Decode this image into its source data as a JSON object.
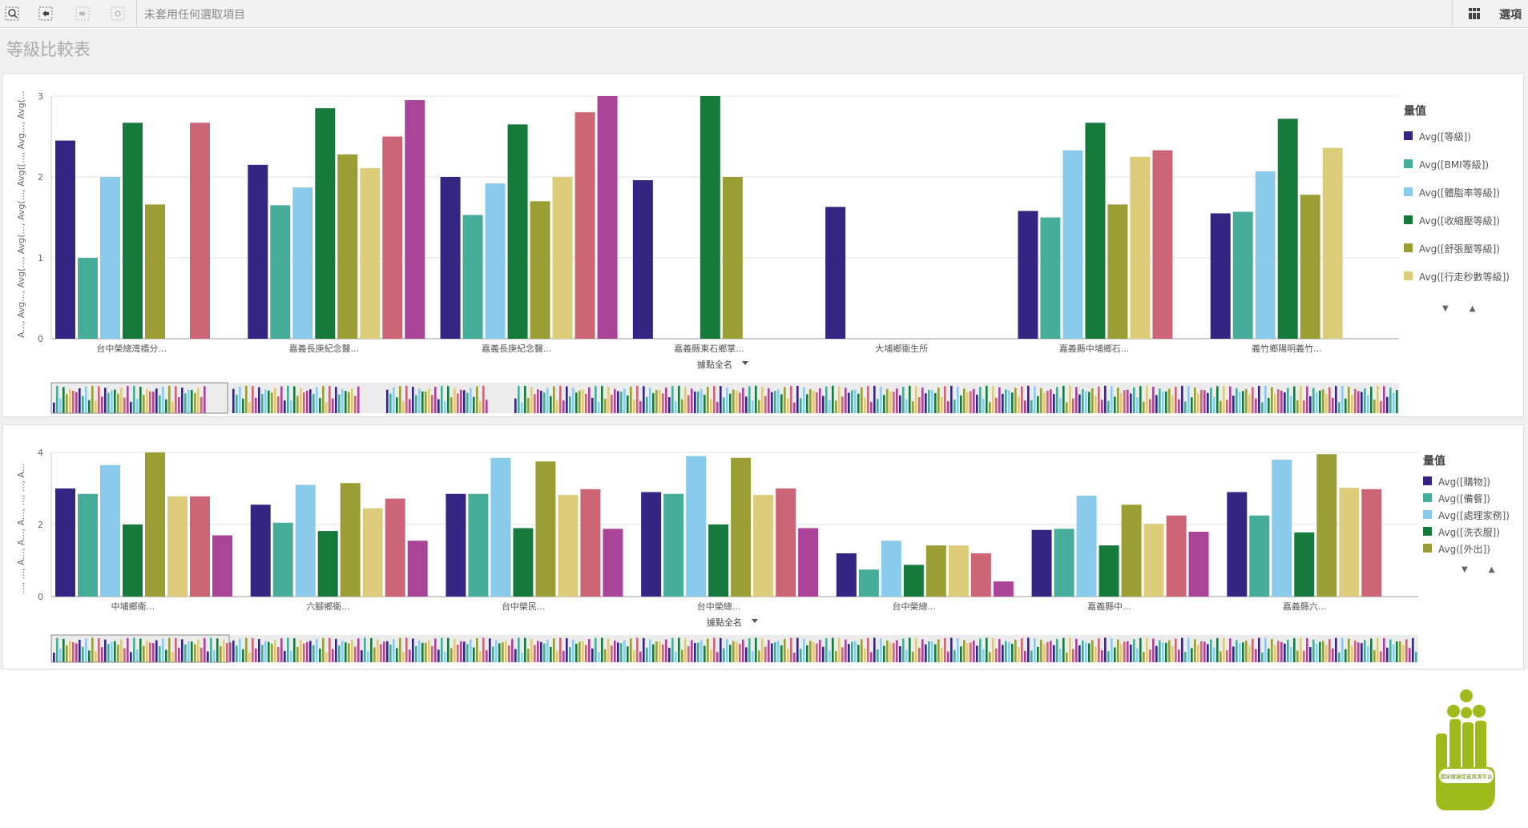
{
  "toolbar": {
    "selection_text": "未套用任何選取項目",
    "options_label": "選項",
    "icons": [
      "smart-search-icon",
      "selections-back-icon",
      "selections-forward-icon",
      "clear-selections-icon",
      "grid-icon"
    ]
  },
  "sheet": {
    "title": "等級比較表"
  },
  "chart1": {
    "y_axis_label": "A..., Avg..., Avg(..., Avg(..., Avg(..., Avg([..., Avg..., Avg(...",
    "x_axis_label": "據點全名",
    "legend_title": "量值",
    "chart_data": {
      "type": "bar",
      "categories": [
        "台中榮總灣橋分...",
        "嘉義長庚紀念醫...",
        "嘉義長庚紀念醫...",
        "嘉義縣東石鄉掌...",
        "大埔鄉衛生所",
        "嘉義縣中埔鄉石...",
        "義竹鄉陽明義竹..."
      ],
      "ylim": [
        0,
        3
      ],
      "yticks": [
        0,
        1,
        2,
        3
      ],
      "series": [
        {
          "name": "Avg([等級])",
          "color": "#352583",
          "values": [
            2.45,
            2.15,
            2.0,
            1.96,
            1.63,
            1.58,
            1.55
          ]
        },
        {
          "name": "Avg([BMI等級])",
          "color": "#46ad9b",
          "values": [
            1.0,
            1.65,
            1.53,
            null,
            null,
            1.5,
            1.57
          ]
        },
        {
          "name": "Avg([體脂率等級])",
          "color": "#8acbec",
          "values": [
            2.0,
            1.87,
            1.92,
            null,
            null,
            2.33,
            2.07
          ]
        },
        {
          "name": "Avg([收縮壓等級])",
          "color": "#167a3c",
          "values": [
            2.67,
            2.85,
            2.65,
            3.0,
            null,
            2.67,
            2.72
          ]
        },
        {
          "name": "Avg([舒張壓等級])",
          "color": "#9a9e35",
          "values": [
            1.66,
            2.28,
            1.7,
            2.0,
            null,
            1.66,
            1.78
          ]
        },
        {
          "name": "Avg([行走秒數等級])",
          "color": "#ddcc79",
          "values": [
            null,
            2.11,
            2.0,
            null,
            null,
            2.25,
            2.36
          ]
        },
        {
          "name": "",
          "color": "#cc6677",
          "values": [
            2.67,
            2.5,
            2.8,
            null,
            null,
            2.33,
            null
          ]
        },
        {
          "name": "",
          "color": "#aa4499",
          "values": [
            null,
            2.95,
            3.0,
            null,
            null,
            null,
            null
          ]
        }
      ],
      "legend_position": "right",
      "grid": true
    }
  },
  "chart2": {
    "y_axis_label": "..., ..., A..., A..., A..., ..., ..., A...",
    "x_axis_label": "據點全名",
    "legend_title": "量值",
    "chart_data": {
      "type": "bar",
      "categories": [
        "中埔鄉衛...",
        "六腳鄉衛...",
        "台中榮民...",
        "台中榮總...",
        "台中榮總...",
        "嘉義縣中...",
        "嘉義縣六..."
      ],
      "ylim": [
        0,
        4
      ],
      "yticks": [
        0,
        2,
        4
      ],
      "series": [
        {
          "name": "Avg([購物])",
          "color": "#352583",
          "values": [
            3.0,
            2.55,
            2.85,
            2.9,
            1.2,
            1.85,
            2.9
          ]
        },
        {
          "name": "Avg([備餐])",
          "color": "#46ad9b",
          "values": [
            2.85,
            2.05,
            2.85,
            2.85,
            0.75,
            1.88,
            2.25
          ]
        },
        {
          "name": "Avg([處理家務])",
          "color": "#8acbec",
          "values": [
            3.65,
            3.1,
            3.85,
            3.9,
            1.55,
            2.8,
            3.8
          ]
        },
        {
          "name": "Avg([洗衣服])",
          "color": "#167a3c",
          "values": [
            2.0,
            1.82,
            1.9,
            2.0,
            0.88,
            1.42,
            1.78
          ]
        },
        {
          "name": "Avg([外出])",
          "color": "#9a9e35",
          "values": [
            4.0,
            3.15,
            3.75,
            3.85,
            1.42,
            2.55,
            3.95
          ]
        },
        {
          "name": "",
          "color": "#ddcc79",
          "values": [
            2.78,
            2.45,
            2.82,
            2.82,
            1.42,
            2.02,
            3.02
          ]
        },
        {
          "name": "",
          "color": "#cc6677",
          "values": [
            2.78,
            2.72,
            2.98,
            3.0,
            1.2,
            2.25,
            2.98
          ]
        },
        {
          "name": "",
          "color": "#aa4499",
          "values": [
            1.7,
            1.55,
            1.88,
            1.9,
            0.42,
            1.8,
            null
          ]
        }
      ],
      "legend_position": "right",
      "grid": true
    }
  },
  "logo": {
    "text": "國家健康促進資源平台",
    "color": "#9fba1c"
  }
}
